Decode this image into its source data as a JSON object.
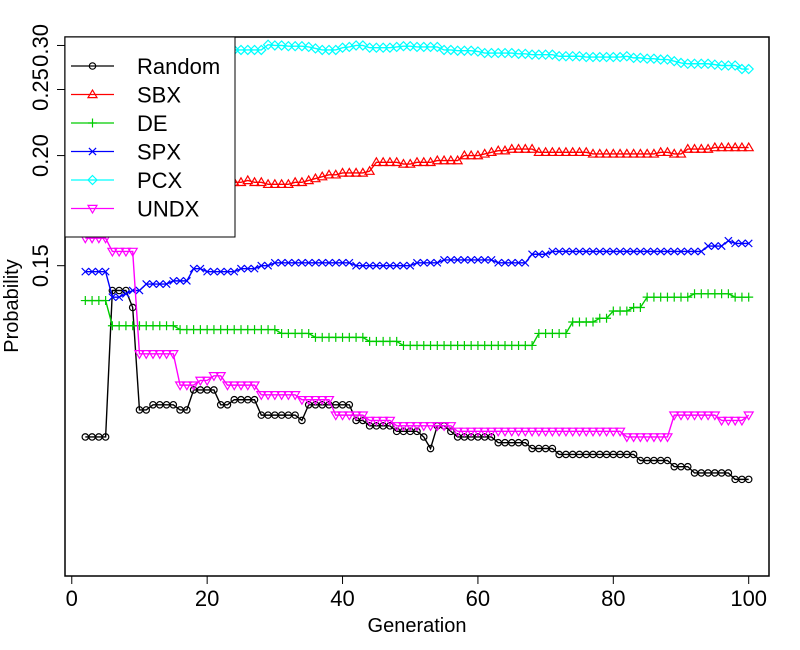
{
  "chart_data": {
    "type": "line",
    "title": "",
    "xlabel": "Generation",
    "ylabel": "Probability",
    "xlim": [
      -1,
      103
    ],
    "ylim": [
      0.088,
      0.312
    ],
    "x_ticks": [
      0,
      20,
      40,
      60,
      80,
      100
    ],
    "y_ticks": [
      0.15,
      0.2,
      0.25,
      0.3
    ],
    "y_tick_labels": [
      "0.15",
      "0.20",
      "0.25",
      "0.30"
    ],
    "y_scale": "reciprocal",
    "grid": false,
    "legend_position": "top-left",
    "x": [
      2,
      3,
      4,
      5,
      6,
      7,
      8,
      9,
      10,
      11,
      12,
      13,
      14,
      15,
      16,
      17,
      18,
      19,
      20,
      21,
      22,
      23,
      24,
      25,
      26,
      27,
      28,
      29,
      30,
      31,
      32,
      33,
      34,
      35,
      36,
      37,
      38,
      39,
      40,
      41,
      42,
      43,
      44,
      45,
      46,
      47,
      48,
      49,
      50,
      51,
      52,
      53,
      54,
      55,
      56,
      57,
      58,
      59,
      60,
      61,
      62,
      63,
      64,
      65,
      66,
      67,
      68,
      69,
      70,
      71,
      72,
      73,
      74,
      75,
      76,
      77,
      78,
      79,
      80,
      81,
      82,
      83,
      84,
      85,
      86,
      87,
      88,
      89,
      90,
      91,
      92,
      93,
      94,
      95,
      96,
      97,
      98,
      99,
      100
    ],
    "series": [
      {
        "name": "Random",
        "color": "#000000",
        "marker": "circle",
        "values": [
          0.108,
          0.108,
          0.108,
          0.108,
          0.142,
          0.142,
          0.142,
          0.137,
          0.113,
          0.113,
          0.114,
          0.114,
          0.114,
          0.114,
          0.113,
          0.113,
          0.117,
          0.117,
          0.117,
          0.117,
          0.114,
          0.114,
          0.115,
          0.115,
          0.115,
          0.115,
          0.112,
          0.112,
          0.112,
          0.112,
          0.112,
          0.112,
          0.111,
          0.114,
          0.114,
          0.114,
          0.114,
          0.114,
          0.114,
          0.114,
          0.111,
          0.111,
          0.11,
          0.11,
          0.11,
          0.11,
          0.109,
          0.109,
          0.109,
          0.109,
          0.108,
          0.106,
          0.11,
          0.11,
          0.109,
          0.108,
          0.108,
          0.108,
          0.108,
          0.108,
          0.108,
          0.107,
          0.107,
          0.107,
          0.107,
          0.107,
          0.106,
          0.106,
          0.106,
          0.106,
          0.105,
          0.105,
          0.105,
          0.105,
          0.105,
          0.105,
          0.105,
          0.105,
          0.105,
          0.105,
          0.105,
          0.105,
          0.104,
          0.104,
          0.104,
          0.104,
          0.104,
          0.103,
          0.103,
          0.103,
          0.102,
          0.102,
          0.102,
          0.102,
          0.102,
          0.102,
          0.101,
          0.101,
          0.101
        ]
      },
      {
        "name": "SBX",
        "color": "#ff0000",
        "marker": "triangle-up",
        "values": [
          0.192,
          0.192,
          0.192,
          0.192,
          0.186,
          0.186,
          0.185,
          0.186,
          0.186,
          0.185,
          0.185,
          0.185,
          0.185,
          0.185,
          0.185,
          0.185,
          0.186,
          0.186,
          0.186,
          0.186,
          0.186,
          0.185,
          0.185,
          0.185,
          0.186,
          0.185,
          0.185,
          0.184,
          0.184,
          0.184,
          0.184,
          0.185,
          0.185,
          0.186,
          0.187,
          0.188,
          0.189,
          0.189,
          0.19,
          0.19,
          0.19,
          0.19,
          0.191,
          0.196,
          0.196,
          0.196,
          0.196,
          0.195,
          0.195,
          0.196,
          0.196,
          0.196,
          0.197,
          0.197,
          0.197,
          0.197,
          0.2,
          0.2,
          0.2,
          0.201,
          0.202,
          0.203,
          0.203,
          0.204,
          0.204,
          0.204,
          0.204,
          0.202,
          0.202,
          0.202,
          0.202,
          0.202,
          0.202,
          0.202,
          0.202,
          0.201,
          0.201,
          0.201,
          0.201,
          0.201,
          0.201,
          0.201,
          0.201,
          0.201,
          0.201,
          0.202,
          0.202,
          0.201,
          0.201,
          0.204,
          0.204,
          0.204,
          0.204,
          0.205,
          0.205,
          0.205,
          0.205,
          0.205,
          0.205
        ]
      },
      {
        "name": "DE",
        "color": "#00cc00",
        "marker": "plus",
        "values": [
          0.139,
          0.139,
          0.139,
          0.139,
          0.132,
          0.132,
          0.132,
          0.132,
          0.132,
          0.132,
          0.132,
          0.132,
          0.132,
          0.132,
          0.131,
          0.131,
          0.131,
          0.131,
          0.131,
          0.131,
          0.131,
          0.131,
          0.131,
          0.131,
          0.131,
          0.131,
          0.131,
          0.131,
          0.131,
          0.13,
          0.13,
          0.13,
          0.13,
          0.13,
          0.129,
          0.129,
          0.129,
          0.129,
          0.129,
          0.129,
          0.129,
          0.129,
          0.128,
          0.128,
          0.128,
          0.128,
          0.128,
          0.127,
          0.127,
          0.127,
          0.127,
          0.127,
          0.127,
          0.127,
          0.127,
          0.127,
          0.127,
          0.127,
          0.127,
          0.127,
          0.127,
          0.127,
          0.127,
          0.127,
          0.127,
          0.127,
          0.127,
          0.13,
          0.13,
          0.13,
          0.13,
          0.13,
          0.133,
          0.133,
          0.133,
          0.133,
          0.134,
          0.134,
          0.136,
          0.136,
          0.136,
          0.137,
          0.137,
          0.14,
          0.14,
          0.14,
          0.14,
          0.14,
          0.14,
          0.14,
          0.141,
          0.141,
          0.141,
          0.141,
          0.141,
          0.141,
          0.14,
          0.14,
          0.14
        ]
      },
      {
        "name": "SPX",
        "color": "#0000ff",
        "marker": "x",
        "values": [
          0.148,
          0.148,
          0.148,
          0.148,
          0.14,
          0.14,
          0.141,
          0.142,
          0.142,
          0.144,
          0.144,
          0.144,
          0.144,
          0.145,
          0.145,
          0.145,
          0.149,
          0.149,
          0.148,
          0.148,
          0.148,
          0.148,
          0.148,
          0.149,
          0.149,
          0.149,
          0.15,
          0.15,
          0.151,
          0.151,
          0.151,
          0.151,
          0.151,
          0.151,
          0.151,
          0.151,
          0.151,
          0.151,
          0.151,
          0.151,
          0.15,
          0.15,
          0.15,
          0.15,
          0.15,
          0.15,
          0.15,
          0.15,
          0.15,
          0.151,
          0.151,
          0.151,
          0.151,
          0.152,
          0.152,
          0.152,
          0.152,
          0.152,
          0.152,
          0.152,
          0.152,
          0.151,
          0.151,
          0.151,
          0.151,
          0.151,
          0.154,
          0.154,
          0.154,
          0.155,
          0.155,
          0.155,
          0.155,
          0.155,
          0.155,
          0.155,
          0.155,
          0.155,
          0.155,
          0.155,
          0.155,
          0.155,
          0.155,
          0.155,
          0.155,
          0.155,
          0.155,
          0.155,
          0.155,
          0.155,
          0.155,
          0.155,
          0.157,
          0.157,
          0.157,
          0.159,
          0.158,
          0.158,
          0.158
        ]
      },
      {
        "name": "PCX",
        "color": "#00ffff",
        "marker": "diamond",
        "values": [
          0.296,
          0.296,
          0.296,
          0.296,
          0.296,
          0.296,
          0.296,
          0.296,
          0.296,
          0.296,
          0.296,
          0.296,
          0.296,
          0.296,
          0.296,
          0.296,
          0.296,
          0.296,
          0.296,
          0.296,
          0.296,
          0.294,
          0.294,
          0.294,
          0.294,
          0.294,
          0.294,
          0.301,
          0.3,
          0.3,
          0.299,
          0.299,
          0.299,
          0.298,
          0.296,
          0.294,
          0.294,
          0.294,
          0.297,
          0.298,
          0.3,
          0.3,
          0.297,
          0.297,
          0.297,
          0.297,
          0.298,
          0.299,
          0.299,
          0.298,
          0.298,
          0.298,
          0.298,
          0.294,
          0.294,
          0.293,
          0.293,
          0.293,
          0.292,
          0.29,
          0.29,
          0.29,
          0.29,
          0.29,
          0.289,
          0.289,
          0.288,
          0.288,
          0.288,
          0.288,
          0.286,
          0.286,
          0.286,
          0.286,
          0.285,
          0.285,
          0.285,
          0.285,
          0.285,
          0.285,
          0.286,
          0.284,
          0.284,
          0.283,
          0.283,
          0.282,
          0.282,
          0.28,
          0.278,
          0.277,
          0.277,
          0.277,
          0.277,
          0.276,
          0.275,
          0.275,
          0.275,
          0.271,
          0.271
        ]
      },
      {
        "name": "UNDX",
        "color": "#ff00ff",
        "marker": "triangle-down",
        "values": [
          0.16,
          0.16,
          0.16,
          0.16,
          0.155,
          0.155,
          0.155,
          0.155,
          0.125,
          0.125,
          0.125,
          0.125,
          0.125,
          0.125,
          0.118,
          0.118,
          0.118,
          0.119,
          0.119,
          0.12,
          0.12,
          0.118,
          0.118,
          0.118,
          0.118,
          0.118,
          0.116,
          0.116,
          0.116,
          0.116,
          0.116,
          0.116,
          0.115,
          0.115,
          0.115,
          0.115,
          0.115,
          0.112,
          0.112,
          0.112,
          0.112,
          0.112,
          0.111,
          0.111,
          0.111,
          0.111,
          0.11,
          0.11,
          0.11,
          0.11,
          0.11,
          0.11,
          0.11,
          0.11,
          0.11,
          0.109,
          0.109,
          0.109,
          0.109,
          0.109,
          0.109,
          0.109,
          0.109,
          0.109,
          0.109,
          0.109,
          0.109,
          0.109,
          0.109,
          0.109,
          0.109,
          0.109,
          0.109,
          0.109,
          0.109,
          0.109,
          0.109,
          0.109,
          0.109,
          0.109,
          0.108,
          0.108,
          0.108,
          0.108,
          0.108,
          0.108,
          0.108,
          0.112,
          0.112,
          0.112,
          0.112,
          0.112,
          0.112,
          0.112,
          0.111,
          0.111,
          0.111,
          0.111,
          0.112
        ]
      }
    ]
  }
}
